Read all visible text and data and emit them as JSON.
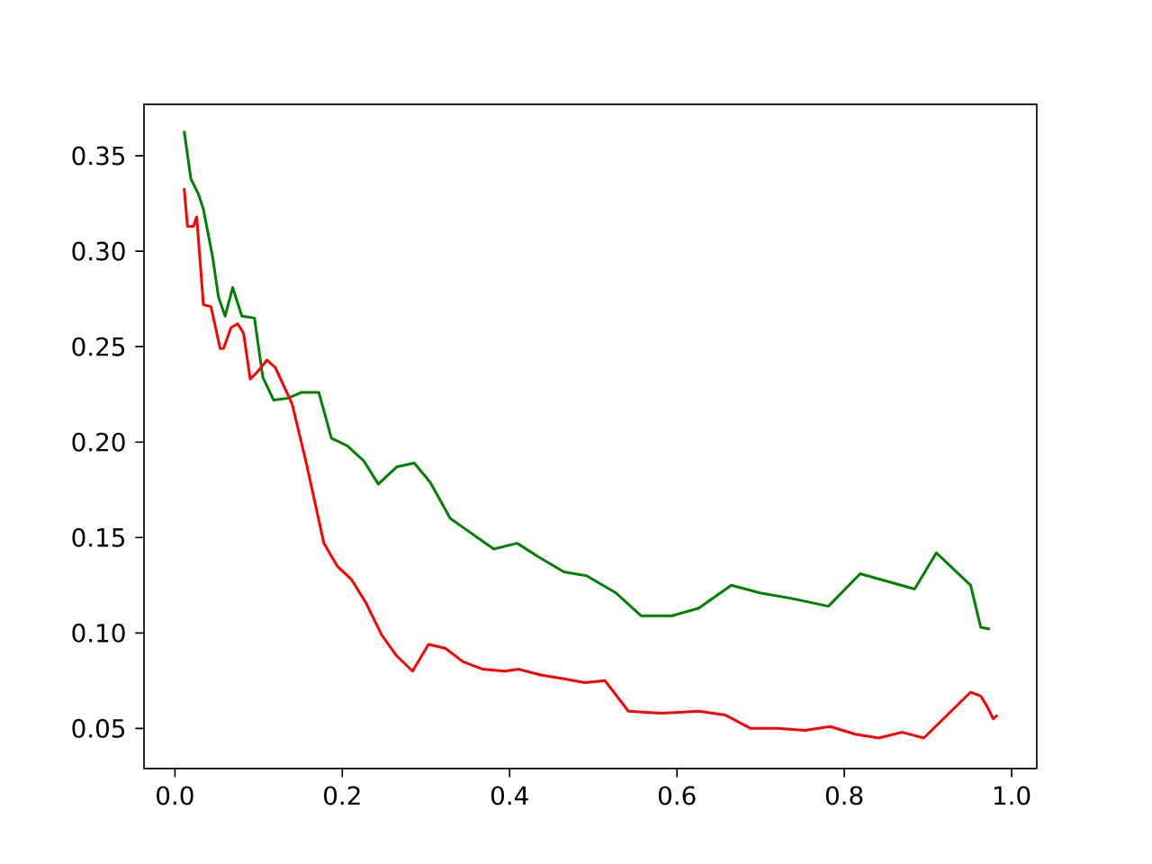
{
  "chart_data": {
    "type": "line",
    "xlim": [
      -0.037,
      1.03
    ],
    "ylim": [
      0.029,
      0.377
    ],
    "xticks": [
      {
        "value": 0,
        "label": "0.0"
      },
      {
        "value": 0.2,
        "label": "0.2"
      },
      {
        "value": 0.4,
        "label": "0.4"
      },
      {
        "value": 0.6,
        "label": "0.6"
      },
      {
        "value": 0.8,
        "label": "0.8"
      },
      {
        "value": 1.0,
        "label": "1.0"
      }
    ],
    "yticks": [
      0.05,
      {
        "value": 0.1,
        "label": "0.10"
      },
      0.15,
      {
        "value": 0.2,
        "label": "0.20"
      },
      0.25,
      {
        "value": 0.3,
        "label": "0.30"
      },
      0.35
    ],
    "series": [
      {
        "color": "#008000",
        "x": [
          0.011,
          0.019,
          0.028,
          0.034,
          0.045,
          0.052,
          0.06,
          0.069,
          0.08,
          0.095,
          0.105,
          0.118,
          0.135,
          0.151,
          0.172,
          0.187,
          0.206,
          0.226,
          0.243,
          0.265,
          0.286,
          0.305,
          0.329,
          0.355,
          0.381,
          0.409,
          0.434,
          0.465,
          0.492,
          0.527,
          0.557,
          0.594,
          0.626,
          0.665,
          0.699,
          0.738,
          0.781,
          0.819,
          0.884,
          0.91,
          0.951,
          0.963,
          0.974
        ],
        "values": [
          0.363,
          0.338,
          0.33,
          0.322,
          0.297,
          0.276,
          0.266,
          0.281,
          0.266,
          0.265,
          0.234,
          0.222,
          0.223,
          0.226,
          0.226,
          0.202,
          0.198,
          0.19,
          0.178,
          0.187,
          0.189,
          0.179,
          0.16,
          0.152,
          0.144,
          0.147,
          0.14,
          0.132,
          0.13,
          0.121,
          0.109,
          0.109,
          0.113,
          0.125,
          0.121,
          0.118,
          0.114,
          0.131,
          0.123,
          0.142,
          0.125,
          0.103,
          0.102
        ]
      },
      {
        "color": "#ff0000",
        "x": [
          0.011,
          0.015,
          0.022,
          0.026,
          0.034,
          0.043,
          0.054,
          0.058,
          0.067,
          0.075,
          0.082,
          0.09,
          0.099,
          0.11,
          0.12,
          0.14,
          0.157,
          0.178,
          0.194,
          0.211,
          0.228,
          0.247,
          0.265,
          0.284,
          0.303,
          0.323,
          0.344,
          0.368,
          0.394,
          0.411,
          0.437,
          0.465,
          0.49,
          0.514,
          0.542,
          0.581,
          0.626,
          0.658,
          0.688,
          0.72,
          0.753,
          0.783,
          0.813,
          0.841,
          0.869,
          0.895,
          0.951,
          0.963,
          0.97,
          0.978,
          0.983
        ],
        "values": [
          0.333,
          0.313,
          0.313,
          0.318,
          0.272,
          0.271,
          0.249,
          0.249,
          0.26,
          0.262,
          0.257,
          0.233,
          0.237,
          0.243,
          0.239,
          0.22,
          0.189,
          0.147,
          0.135,
          0.128,
          0.116,
          0.099,
          0.088,
          0.08,
          0.094,
          0.092,
          0.085,
          0.081,
          0.08,
          0.081,
          0.078,
          0.076,
          0.074,
          0.075,
          0.059,
          0.058,
          0.059,
          0.057,
          0.05,
          0.05,
          0.049,
          0.051,
          0.047,
          0.045,
          0.048,
          0.045,
          0.069,
          0.067,
          0.062,
          0.055,
          0.057
        ]
      }
    ]
  }
}
